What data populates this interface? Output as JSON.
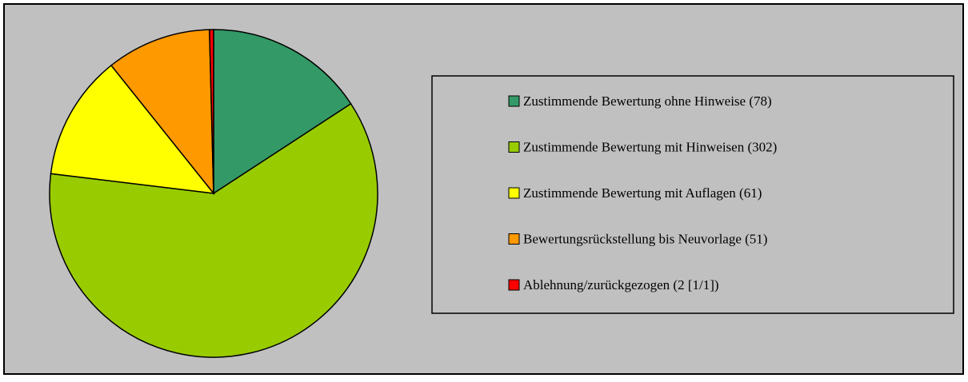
{
  "chart_data": {
    "type": "pie",
    "categories": [
      "Zustimmende Bewertung ohne Hinweise (78)",
      "Zustimmende Bewertung mit Hinweisen (302)",
      "Zustimmende Bewertung mit Auflagen (61)",
      "Bewertungsrückstellung bis Neuvorlage (51)",
      "Ablehnung/zurückgezogen (2 [1/1])"
    ],
    "values": [
      78,
      302,
      61,
      51,
      2
    ],
    "colors": [
      "#339966",
      "#99cc00",
      "#ffff00",
      "#ff9900",
      "#ff0000"
    ],
    "legend": "right"
  }
}
